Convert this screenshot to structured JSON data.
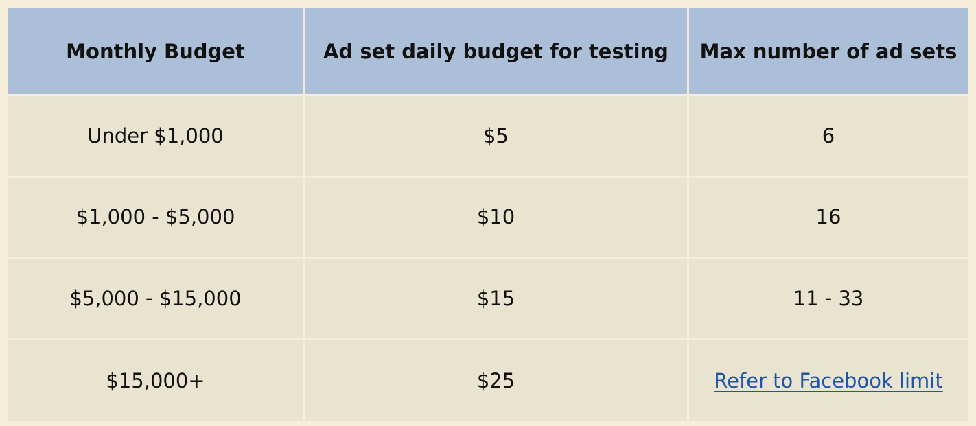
{
  "colors": {
    "page_background": "#f6eeda",
    "header_background": "#abc0d8",
    "row_background": "#e9e4cf",
    "text": "#111111",
    "link": "#1f56a6"
  },
  "table": {
    "headers": [
      "Monthly Budget",
      "Ad set daily budget for testing",
      "Max number of ad sets"
    ],
    "rows": [
      [
        "Under $1,000",
        "$5",
        "6"
      ],
      [
        "$1,000 - $5,000",
        "$10",
        "16"
      ],
      [
        "$5,000 - $15,000",
        "$15",
        "11 - 33"
      ],
      [
        "$15,000+",
        "$25",
        "Refer to Facebook limit"
      ]
    ]
  }
}
